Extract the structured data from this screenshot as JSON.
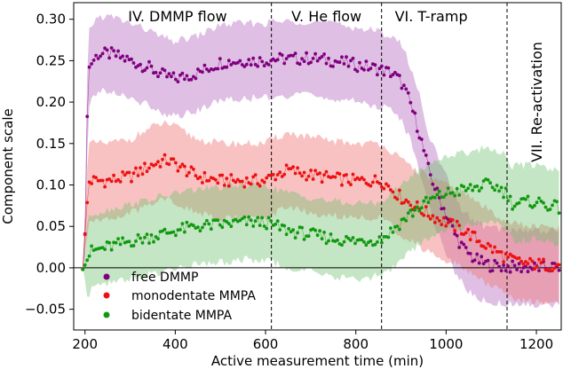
{
  "chart_data": {
    "type": "scatter",
    "xlabel": "Active measurement time (min)",
    "ylabel": "Component scale",
    "xlim": [
      175,
      1255
    ],
    "ylim": [
      -0.075,
      0.32
    ],
    "xticks": [
      200,
      400,
      600,
      800,
      1000,
      1200
    ],
    "yticks": [
      -0.05,
      0.0,
      0.05,
      0.1,
      0.15,
      0.2,
      0.25,
      0.3
    ],
    "ytick_labels": [
      "−0.05",
      "0.00",
      "0.05",
      "0.10",
      "0.15",
      "0.20",
      "0.25",
      "0.30"
    ],
    "zero_line": 0,
    "phase_boundaries": [
      613,
      857,
      1135
    ],
    "phases": [
      {
        "label": "IV. DMMP flow",
        "x_center": 405,
        "orientation": "horizontal"
      },
      {
        "label": "V. He flow",
        "x_center": 735,
        "orientation": "horizontal"
      },
      {
        "label": "VI. T-ramp",
        "x_center": 967,
        "orientation": "horizontal"
      },
      {
        "label": "VII. Re-activation",
        "x_center": 1200,
        "orientation": "vertical"
      }
    ],
    "legend_position": "lower-left",
    "series": [
      {
        "name": "free DMMP",
        "color": "#800080",
        "band_color": "#c080c8",
        "band_opacity": 0.5,
        "knots": [
          [
            195,
            0.0
          ],
          [
            200,
            0.04
          ],
          [
            205,
            0.19
          ],
          [
            210,
            0.245
          ],
          [
            230,
            0.258
          ],
          [
            260,
            0.258
          ],
          [
            300,
            0.25
          ],
          [
            340,
            0.242
          ],
          [
            370,
            0.233
          ],
          [
            400,
            0.228
          ],
          [
            450,
            0.235
          ],
          [
            500,
            0.248
          ],
          [
            550,
            0.25
          ],
          [
            600,
            0.25
          ],
          [
            613,
            0.252
          ],
          [
            650,
            0.252
          ],
          [
            700,
            0.253
          ],
          [
            750,
            0.25
          ],
          [
            800,
            0.245
          ],
          [
            850,
            0.24
          ],
          [
            880,
            0.235
          ],
          [
            900,
            0.225
          ],
          [
            920,
            0.2
          ],
          [
            940,
            0.165
          ],
          [
            960,
            0.12
          ],
          [
            980,
            0.09
          ],
          [
            1000,
            0.065
          ],
          [
            1020,
            0.04
          ],
          [
            1040,
            0.022
          ],
          [
            1060,
            0.012
          ],
          [
            1080,
            0.006
          ],
          [
            1100,
            0.003
          ],
          [
            1140,
            0.001
          ],
          [
            1200,
            0.0
          ],
          [
            1250,
            0.001
          ]
        ],
        "band_half_width": 0.045
      },
      {
        "name": "monodentate MMPA",
        "color": "#ee1111",
        "band_color": "#f07878",
        "band_opacity": 0.45,
        "knots": [
          [
            195,
            0.0
          ],
          [
            200,
            0.04
          ],
          [
            205,
            0.08
          ],
          [
            210,
            0.105
          ],
          [
            250,
            0.105
          ],
          [
            300,
            0.11
          ],
          [
            350,
            0.125
          ],
          [
            380,
            0.13
          ],
          [
            400,
            0.125
          ],
          [
            450,
            0.11
          ],
          [
            500,
            0.105
          ],
          [
            550,
            0.105
          ],
          [
            600,
            0.105
          ],
          [
            613,
            0.11
          ],
          [
            650,
            0.118
          ],
          [
            700,
            0.112
          ],
          [
            750,
            0.108
          ],
          [
            800,
            0.105
          ],
          [
            857,
            0.105
          ],
          [
            880,
            0.095
          ],
          [
            900,
            0.085
          ],
          [
            930,
            0.075
          ],
          [
            960,
            0.065
          ],
          [
            1000,
            0.055
          ],
          [
            1040,
            0.045
          ],
          [
            1080,
            0.03
          ],
          [
            1110,
            0.02
          ],
          [
            1140,
            0.01
          ],
          [
            1180,
            0.005
          ],
          [
            1250,
            0.003
          ]
        ],
        "band_half_width": 0.045
      },
      {
        "name": "bidentate MMPA",
        "color": "#119911",
        "band_color": "#6cc06c",
        "band_opacity": 0.4,
        "knots": [
          [
            195,
            0.0
          ],
          [
            205,
            0.01
          ],
          [
            215,
            0.02
          ],
          [
            250,
            0.025
          ],
          [
            300,
            0.032
          ],
          [
            350,
            0.038
          ],
          [
            400,
            0.045
          ],
          [
            450,
            0.05
          ],
          [
            500,
            0.052
          ],
          [
            550,
            0.055
          ],
          [
            600,
            0.055
          ],
          [
            613,
            0.052
          ],
          [
            650,
            0.045
          ],
          [
            700,
            0.04
          ],
          [
            750,
            0.035
          ],
          [
            800,
            0.032
          ],
          [
            857,
            0.035
          ],
          [
            880,
            0.045
          ],
          [
            920,
            0.065
          ],
          [
            960,
            0.08
          ],
          [
            1000,
            0.09
          ],
          [
            1050,
            0.095
          ],
          [
            1090,
            0.1
          ],
          [
            1110,
            0.098
          ],
          [
            1135,
            0.09
          ],
          [
            1145,
            0.078
          ],
          [
            1160,
            0.078
          ],
          [
            1200,
            0.08
          ],
          [
            1250,
            0.072
          ]
        ],
        "band_half_width": 0.045
      }
    ],
    "points_per_series": 216,
    "x_range_points": [
      195,
      1250
    ]
  }
}
